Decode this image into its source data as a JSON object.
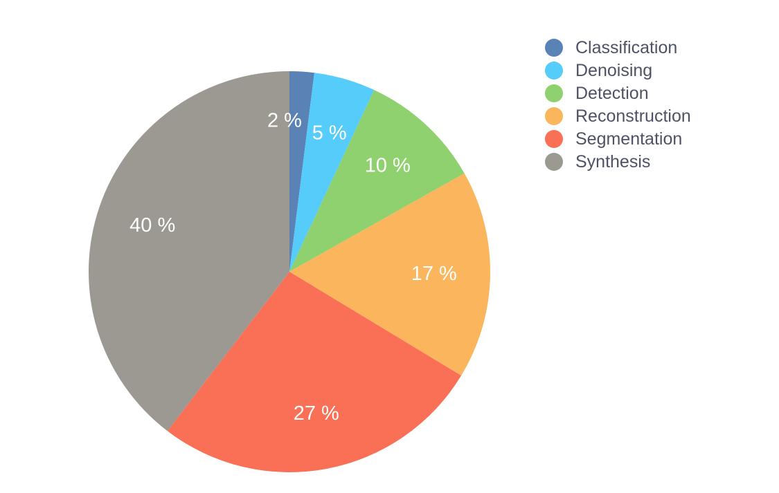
{
  "chart_data": {
    "type": "pie",
    "start_angle_deg": 0,
    "direction": "clockwise",
    "legend_position": "top-right",
    "slices": [
      {
        "label": "Classification",
        "value": 2,
        "display": "2 %",
        "color": "#5a82b4"
      },
      {
        "label": "Denoising",
        "value": 5,
        "display": "5 %",
        "color": "#56ccfa"
      },
      {
        "label": "Detection",
        "value": 10,
        "display": "10 %",
        "color": "#8fd16e"
      },
      {
        "label": "Reconstruction",
        "value": 17,
        "display": "17 %",
        "color": "#fbb55d"
      },
      {
        "label": "Segmentation",
        "value": 27,
        "display": "27 %",
        "color": "#fa7056"
      },
      {
        "label": "Synthesis",
        "value": 40,
        "display": "40 %",
        "color": "#9c9892"
      }
    ]
  }
}
